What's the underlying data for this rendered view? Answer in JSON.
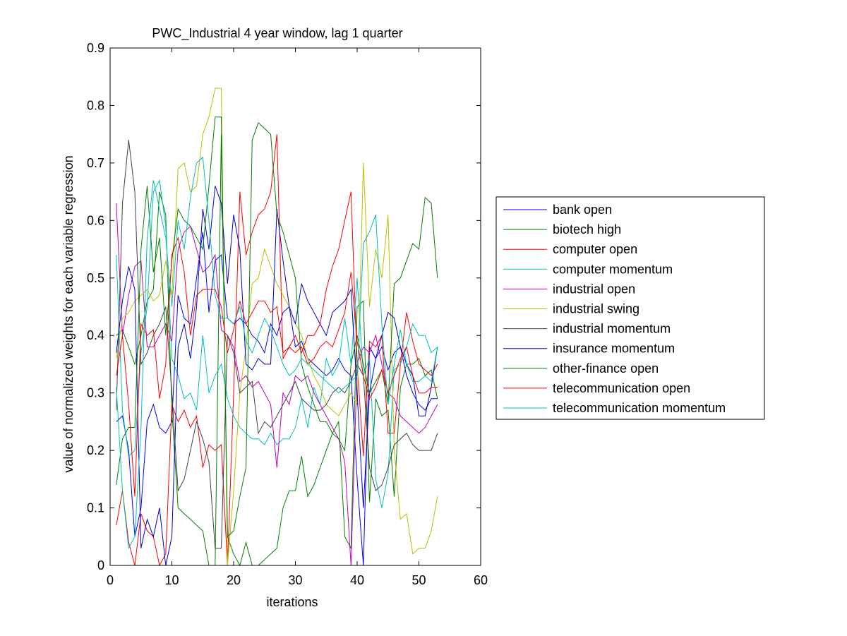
{
  "chart_data": {
    "type": "line",
    "title": "PWC_Industrial 4 year window, lag 1 quarter",
    "xlabel": "iterations",
    "ylabel": "value of normalized weights for each variable regression",
    "xlim": [
      0,
      60
    ],
    "ylim": [
      0,
      0.9
    ],
    "xticks": [
      0,
      10,
      20,
      30,
      40,
      50,
      60
    ],
    "yticks": [
      0,
      0.1,
      0.2,
      0.3,
      0.4,
      0.5,
      0.6,
      0.7,
      0.8,
      0.9
    ],
    "xtick_labels": [
      "0",
      "10",
      "20",
      "30",
      "40",
      "50",
      "60"
    ],
    "ytick_labels": [
      "0",
      "0.1",
      "0.2",
      "0.3",
      "0.4",
      "0.5",
      "0.6",
      "0.7",
      "0.8",
      "0.9"
    ],
    "grid": false,
    "legend_position": "right outside",
    "x": [
      1,
      2,
      3,
      4,
      5,
      6,
      7,
      8,
      9,
      10,
      11,
      12,
      13,
      14,
      15,
      16,
      17,
      18,
      19,
      20,
      21,
      22,
      23,
      24,
      25,
      26,
      27,
      28,
      29,
      30,
      31,
      32,
      33,
      34,
      35,
      36,
      37,
      38,
      39,
      40,
      41,
      42,
      43,
      44,
      45,
      46,
      47,
      48,
      49,
      50,
      51,
      52,
      53
    ],
    "series": [
      {
        "name": "bank open",
        "color": "#0000ff",
        "values": [
          0.25,
          0.26,
          0.2,
          0.05,
          0.1,
          0.25,
          0.28,
          0.24,
          0.23,
          0.25,
          0.47,
          0.43,
          0.42,
          0.5,
          0.58,
          0.44,
          0.53,
          0.54,
          0.43,
          0.42,
          0.43,
          0.42,
          0.4,
          0.39,
          0.37,
          0.42,
          0.4,
          0.44,
          0.45,
          0.38,
          0.39,
          0.36,
          0.35,
          0.34,
          0.33,
          0.34,
          0.36,
          0.34,
          0.33,
          0.15,
          0.0,
          0.38,
          0.36,
          0.38,
          0.34,
          0.37,
          0.38,
          0.33,
          0.3,
          0.28,
          0.27,
          0.29,
          0.29
        ]
      },
      {
        "name": "biotech high",
        "color": "#008000",
        "values": [
          0.4,
          0.41,
          0.38,
          0.35,
          0.4,
          0.46,
          0.48,
          0.65,
          0.61,
          0.27,
          0.1,
          0.09,
          0.08,
          0.07,
          0.06,
          0.0,
          0.0,
          0.75,
          0.05,
          0.02,
          0.0,
          0.04,
          0.0,
          0.0,
          0.01,
          0.02,
          0.03,
          0.1,
          0.13,
          0.13,
          0.19,
          0.12,
          0.14,
          0.17,
          0.2,
          0.23,
          0.25,
          0.05,
          0.03,
          0.45,
          0.46,
          0.11,
          0.29,
          0.26,
          0.27,
          0.12,
          0.31,
          0.35,
          0.35,
          0.36,
          0.33,
          0.34,
          0.29
        ]
      },
      {
        "name": "computer open",
        "color": "#ff0000",
        "values": [
          0.07,
          0.13,
          0.04,
          0.0,
          0.09,
          0.06,
          0.05,
          0.0,
          0.02,
          0.28,
          0.25,
          0.27,
          0.24,
          0.26,
          0.17,
          0.21,
          0.2,
          0.21,
          0.0,
          0.3,
          0.65,
          0.54,
          0.58,
          0.61,
          0.62,
          0.65,
          0.75,
          0.36,
          0.38,
          0.4,
          0.37,
          0.4,
          0.4,
          0.42,
          0.48,
          0.52,
          0.55,
          0.6,
          0.65,
          0.35,
          0.19,
          0.39,
          0.38,
          0.4,
          0.23,
          0.23,
          0.35,
          0.44,
          0.39,
          0.35,
          0.34,
          0.33,
          0.35
        ]
      },
      {
        "name": "computer momentum",
        "color": "#00bfbf",
        "values": [
          0.54,
          0.27,
          0.19,
          0.2,
          0.37,
          0.45,
          0.65,
          0.67,
          0.59,
          0.36,
          0.33,
          0.29,
          0.3,
          0.27,
          0.4,
          0.3,
          0.33,
          0.35,
          0.29,
          0.26,
          0.24,
          0.23,
          0.22,
          0.22,
          0.21,
          0.23,
          0.21,
          0.22,
          0.22,
          0.24,
          0.29,
          0.24,
          0.31,
          0.28,
          0.36,
          0.33,
          0.35,
          0.43,
          0.35,
          0.5,
          0.33,
          0.36,
          0.15,
          0.1,
          0.16,
          0.34,
          0.35,
          0.38,
          0.42,
          0.4,
          0.4,
          0.37,
          0.38
        ]
      },
      {
        "name": "industrial open",
        "color": "#bf00bf",
        "values": [
          0.63,
          0.4,
          0.47,
          0.52,
          0.53,
          0.38,
          0.38,
          0.4,
          0.42,
          0.39,
          0.55,
          0.58,
          0.59,
          0.55,
          0.51,
          0.52,
          0.54,
          0.41,
          0.4,
          0.38,
          0.32,
          0.33,
          0.31,
          0.32,
          0.3,
          0.28,
          0.17,
          0.3,
          0.28,
          0.33,
          0.32,
          0.33,
          0.3,
          0.28,
          0.26,
          0.24,
          0.22,
          0.18,
          0.0,
          0.35,
          0.38,
          0.37,
          0.4,
          0.35,
          0.3,
          0.29,
          0.26,
          0.25,
          0.24,
          0.23,
          0.24,
          0.26,
          0.28
        ]
      },
      {
        "name": "industrial swing",
        "color": "#bfbf00",
        "values": [
          0.36,
          0.43,
          0.44,
          0.46,
          0.47,
          0.48,
          0.46,
          0.47,
          0.53,
          0.47,
          0.69,
          0.7,
          0.65,
          0.66,
          0.75,
          0.78,
          0.83,
          0.83,
          0.0,
          0.13,
          0.3,
          0.38,
          0.49,
          0.5,
          0.55,
          0.52,
          0.49,
          0.47,
          0.45,
          0.42,
          0.4,
          0.36,
          0.33,
          0.31,
          0.28,
          0.27,
          0.26,
          0.28,
          0.3,
          0.28,
          0.7,
          0.45,
          0.55,
          0.5,
          0.61,
          0.2,
          0.08,
          0.09,
          0.02,
          0.03,
          0.03,
          0.06,
          0.12
        ]
      },
      {
        "name": "industrial momentum",
        "color": "#404040",
        "values": [
          0.27,
          0.63,
          0.74,
          0.65,
          0.35,
          0.37,
          0.4,
          0.42,
          0.45,
          0.3,
          0.13,
          0.15,
          0.2,
          0.25,
          0.22,
          0.18,
          0.03,
          0.03,
          0.4,
          0.37,
          0.3,
          0.31,
          0.32,
          0.23,
          0.25,
          0.24,
          0.26,
          0.28,
          0.3,
          0.32,
          0.29,
          0.28,
          0.27,
          0.27,
          0.28,
          0.3,
          0.31,
          0.3,
          0.32,
          0.35,
          0.33,
          0.17,
          0.13,
          0.14,
          0.17,
          0.21,
          0.22,
          0.23,
          0.21,
          0.2,
          0.2,
          0.2,
          0.23
        ]
      },
      {
        "name": "insurance momentum",
        "color": "#0000cd",
        "values": [
          0.37,
          0.46,
          0.52,
          0.48,
          0.03,
          0.08,
          0.05,
          0.1,
          0.0,
          0.05,
          0.38,
          0.42,
          0.36,
          0.45,
          0.62,
          0.55,
          0.66,
          0.63,
          0.49,
          0.61,
          0.55,
          0.35,
          0.34,
          0.36,
          0.35,
          0.35,
          0.62,
          0.53,
          0.45,
          0.42,
          0.49,
          0.46,
          0.44,
          0.42,
          0.4,
          0.44,
          0.45,
          0.46,
          0.48,
          0.3,
          0.1,
          0.3,
          0.36,
          0.4,
          0.44,
          0.43,
          0.38,
          0.35,
          0.33,
          0.26,
          0.26,
          0.31,
          0.38
        ]
      },
      {
        "name": "other-finance open",
        "color": "#008000",
        "values": [
          0.14,
          0.22,
          0.24,
          0.24,
          0.55,
          0.66,
          0.51,
          0.57,
          0.4,
          0.53,
          0.62,
          0.6,
          0.59,
          0.57,
          0.55,
          0.66,
          0.78,
          0.78,
          0.05,
          0.06,
          0.12,
          0.17,
          0.74,
          0.77,
          0.76,
          0.75,
          0.61,
          0.58,
          0.54,
          0.5,
          0.35,
          0.31,
          0.28,
          0.25,
          0.25,
          0.23,
          0.22,
          0.2,
          0.35,
          0.4,
          0.35,
          0.3,
          0.32,
          0.34,
          0.28,
          0.49,
          0.5,
          0.53,
          0.56,
          0.55,
          0.64,
          0.63,
          0.5
        ]
      },
      {
        "name": "telecommunication open",
        "color": "#ff0000",
        "values": [
          0.33,
          0.4,
          0.28,
          0.12,
          0.42,
          0.4,
          0.41,
          0.29,
          0.35,
          0.54,
          0.57,
          0.51,
          0.4,
          0.47,
          0.48,
          0.48,
          0.48,
          0.45,
          0.37,
          0.41,
          0.46,
          0.42,
          0.44,
          0.46,
          0.46,
          0.44,
          0.45,
          0.37,
          0.38,
          0.37,
          0.38,
          0.35,
          0.36,
          0.38,
          0.39,
          0.38,
          0.41,
          0.44,
          0.51,
          0.39,
          0.33,
          0.29,
          0.31,
          0.34,
          0.3,
          0.33,
          0.36,
          0.38,
          0.33,
          0.3,
          0.3,
          0.31,
          0.31
        ]
      },
      {
        "name": "telecommunication momentum",
        "color": "#00bfbf",
        "values": [
          0.31,
          0.13,
          0.03,
          0.05,
          0.24,
          0.57,
          0.67,
          0.62,
          0.57,
          0.45,
          0.6,
          0.55,
          0.64,
          0.7,
          0.71,
          0.6,
          0.47,
          0.43,
          0.43,
          0.42,
          0.45,
          0.39,
          0.37,
          0.4,
          0.43,
          0.41,
          0.38,
          0.35,
          0.33,
          0.34,
          0.36,
          0.35,
          0.34,
          0.33,
          0.32,
          0.31,
          0.3,
          0.31,
          0.32,
          0.33,
          0.56,
          0.58,
          0.61,
          0.42,
          0.28,
          0.35,
          0.41,
          0.35,
          0.32,
          0.32,
          0.33,
          0.32,
          0.38
        ]
      }
    ]
  }
}
